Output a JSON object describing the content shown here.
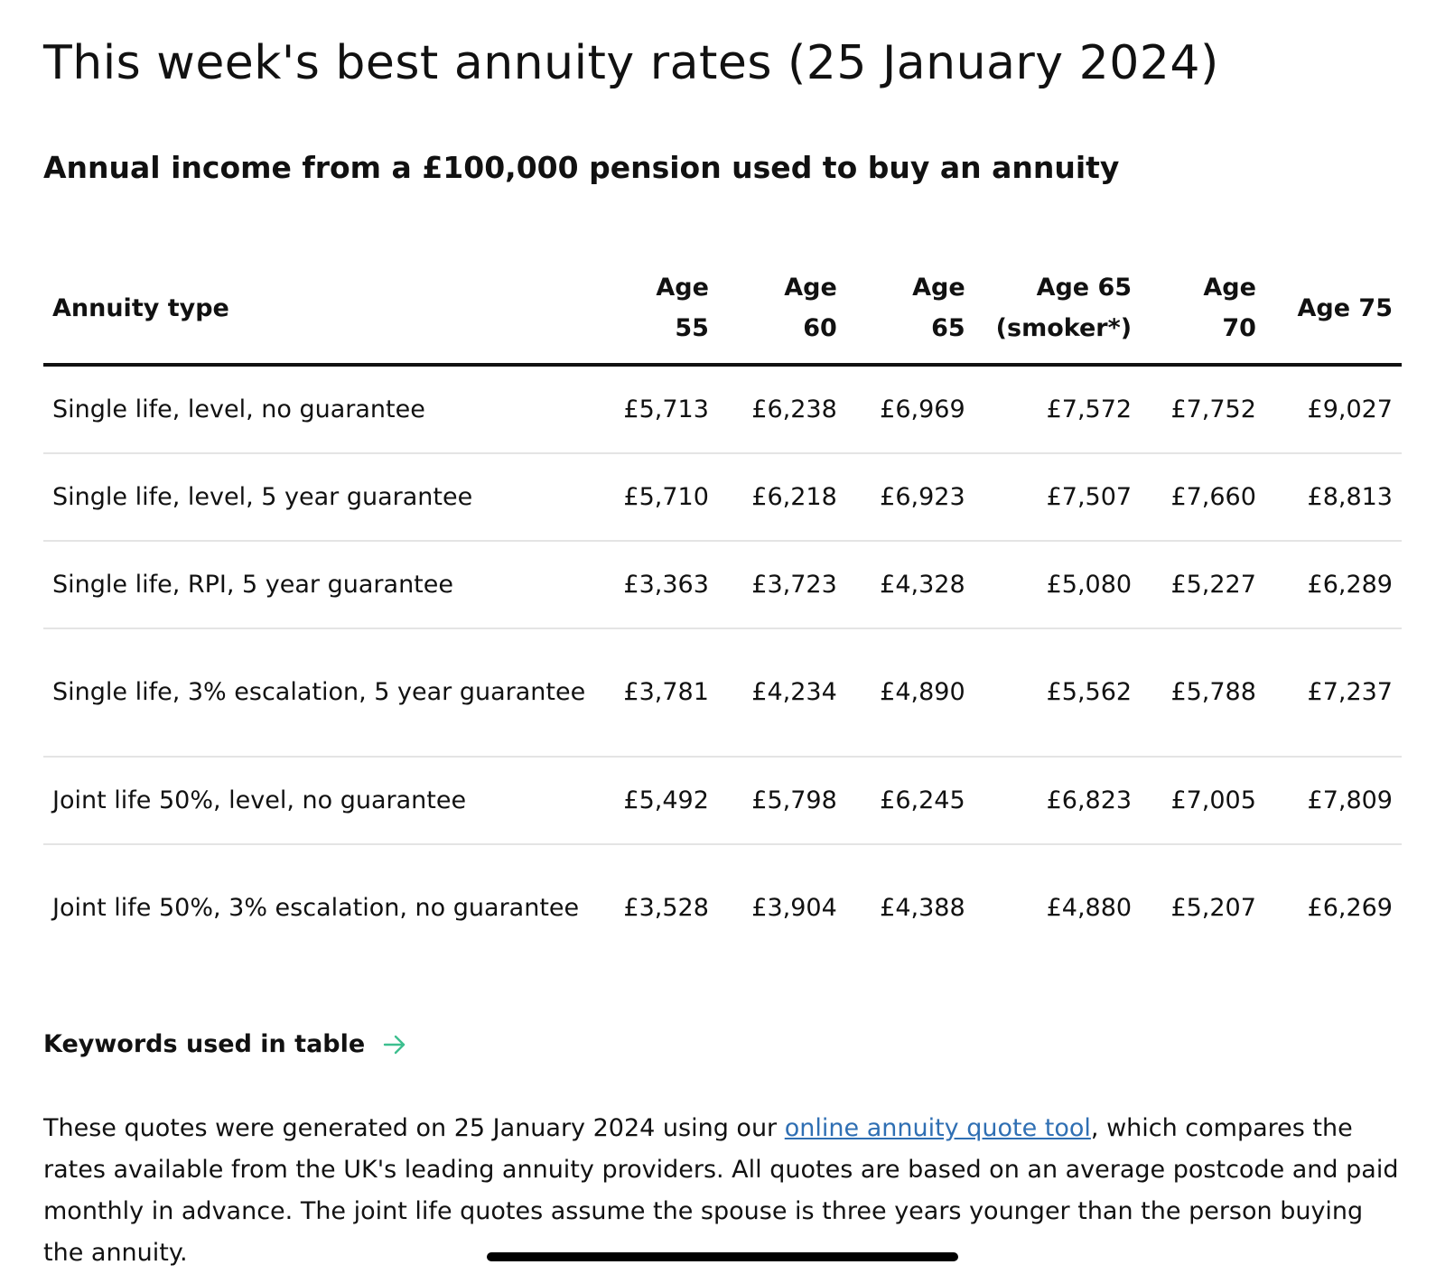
{
  "page": {
    "title": "This week's best annuity rates (25 January 2024)",
    "subtitle": "Annual income from a £100,000 pension used to buy an annuity"
  },
  "table": {
    "headers": {
      "type": "Annuity type",
      "cols": [
        [
          "Age",
          "55"
        ],
        [
          "Age",
          "60"
        ],
        [
          "Age",
          "65"
        ],
        [
          "Age 65",
          "(smoker*)"
        ],
        [
          "Age",
          "70"
        ],
        [
          "Age 75"
        ]
      ]
    },
    "rows": [
      {
        "type": "Single life, level, no guarantee",
        "values": [
          "£5,713",
          "£6,238",
          "£6,969",
          "£7,572",
          "£7,752",
          "£9,027"
        ]
      },
      {
        "type": "Single life, level, 5 year guarantee",
        "values": [
          "£5,710",
          "£6,218",
          "£6,923",
          "£7,507",
          "£7,660",
          "£8,813"
        ]
      },
      {
        "type": "Single life, RPI, 5 year guarantee",
        "values": [
          "£3,363",
          "£3,723",
          "£4,328",
          "£5,080",
          "£5,227",
          "£6,289"
        ]
      },
      {
        "type": "Single life, 3% escalation, 5 year guarantee",
        "values": [
          "£3,781",
          "£4,234",
          "£4,890",
          "£5,562",
          "£5,788",
          "£7,237"
        ]
      },
      {
        "type": "Joint life 50%, level, no guarantee",
        "values": [
          "£5,492",
          "£5,798",
          "£6,245",
          "£6,823",
          "£7,005",
          "£7,809"
        ]
      },
      {
        "type": "Joint life 50%, 3% escalation, no guarantee",
        "values": [
          "£3,528",
          "£3,904",
          "£4,388",
          "£4,880",
          "£5,207",
          "£6,269"
        ]
      }
    ]
  },
  "keywords": {
    "label": "Keywords used in table",
    "icon": "arrow-right-icon",
    "icon_color": "#3dbf8f"
  },
  "footnote": {
    "before_link": "These quotes were generated on 25 January 2024 using our ",
    "link_text": "online annuity quote tool",
    "after_link": ", which compares the rates available from the UK's leading annuity providers. All quotes are based on an average postcode and paid monthly in advance. The joint life quotes assume the spouse is three years younger than the person buying the annuity.",
    "link_color": "#2f6fb3"
  }
}
